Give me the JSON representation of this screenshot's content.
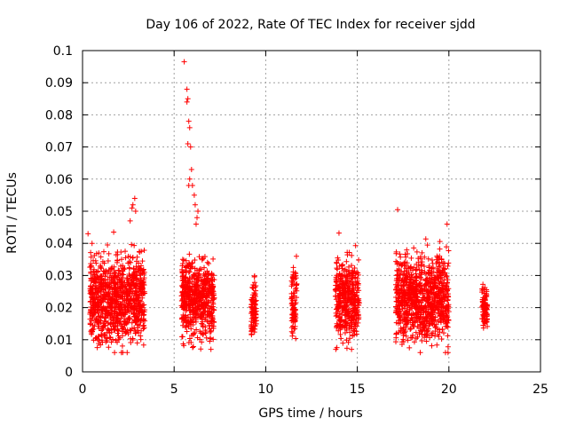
{
  "chart_data": {
    "type": "scatter",
    "title": "Day 106 of 2022, Rate Of TEC Index for receiver sjdd",
    "xlabel": "GPS time / hours",
    "ylabel": "ROTI / TECUs",
    "xlim": [
      0,
      25
    ],
    "ylim": [
      0,
      0.1
    ],
    "xticks": [
      0,
      5,
      10,
      15,
      20,
      25
    ],
    "yticks": [
      0,
      0.01,
      0.02,
      0.03,
      0.04,
      0.05,
      0.06,
      0.07,
      0.08,
      0.09,
      0.1
    ],
    "xtick_labels": [
      "0",
      "5",
      "10",
      "15",
      "20",
      "25"
    ],
    "ytick_labels": [
      "0",
      "0.01",
      "0.02",
      "0.03",
      "0.04",
      "0.05",
      "0.06",
      "0.07",
      "0.08",
      "0.09",
      "0.1"
    ],
    "grid": true,
    "marker": "plus",
    "color": "#ff0000",
    "clusters": [
      {
        "x_range": [
          0.4,
          3.4
        ],
        "y_range": [
          0.006,
          0.045
        ]
      },
      {
        "x_range": [
          5.4,
          7.2
        ],
        "y_range": [
          0.007,
          0.044
        ]
      },
      {
        "x_range": [
          9.2,
          9.5
        ],
        "y_range": [
          0.009,
          0.035
        ]
      },
      {
        "x_range": [
          11.4,
          11.7
        ],
        "y_range": [
          0.008,
          0.041
        ]
      },
      {
        "x_range": [
          13.8,
          15.1
        ],
        "y_range": [
          0.007,
          0.043
        ]
      },
      {
        "x_range": [
          17.1,
          20.0
        ],
        "y_range": [
          0.006,
          0.046
        ]
      },
      {
        "x_range": [
          21.8,
          22.1
        ],
        "y_range": [
          0.012,
          0.031
        ]
      }
    ],
    "outliers": [
      {
        "x": 5.55,
        "y": 0.0965
      },
      {
        "x": 5.7,
        "y": 0.088
      },
      {
        "x": 5.75,
        "y": 0.085
      },
      {
        "x": 5.7,
        "y": 0.084
      },
      {
        "x": 5.8,
        "y": 0.078
      },
      {
        "x": 5.85,
        "y": 0.076
      },
      {
        "x": 5.9,
        "y": 0.07
      },
      {
        "x": 5.75,
        "y": 0.071
      },
      {
        "x": 5.95,
        "y": 0.063
      },
      {
        "x": 5.85,
        "y": 0.06
      },
      {
        "x": 5.8,
        "y": 0.058
      },
      {
        "x": 6.0,
        "y": 0.058
      },
      {
        "x": 6.1,
        "y": 0.055
      },
      {
        "x": 6.15,
        "y": 0.052
      },
      {
        "x": 6.25,
        "y": 0.048
      },
      {
        "x": 6.2,
        "y": 0.046
      },
      {
        "x": 6.3,
        "y": 0.05
      },
      {
        "x": 2.7,
        "y": 0.051
      },
      {
        "x": 2.75,
        "y": 0.052
      },
      {
        "x": 2.85,
        "y": 0.054
      },
      {
        "x": 2.9,
        "y": 0.05
      },
      {
        "x": 2.6,
        "y": 0.047
      },
      {
        "x": 17.2,
        "y": 0.0505
      },
      {
        "x": 19.9,
        "y": 0.046
      },
      {
        "x": 14.0,
        "y": 0.0432
      },
      {
        "x": 0.3,
        "y": 0.043
      },
      {
        "x": 1.7,
        "y": 0.0435
      }
    ]
  }
}
